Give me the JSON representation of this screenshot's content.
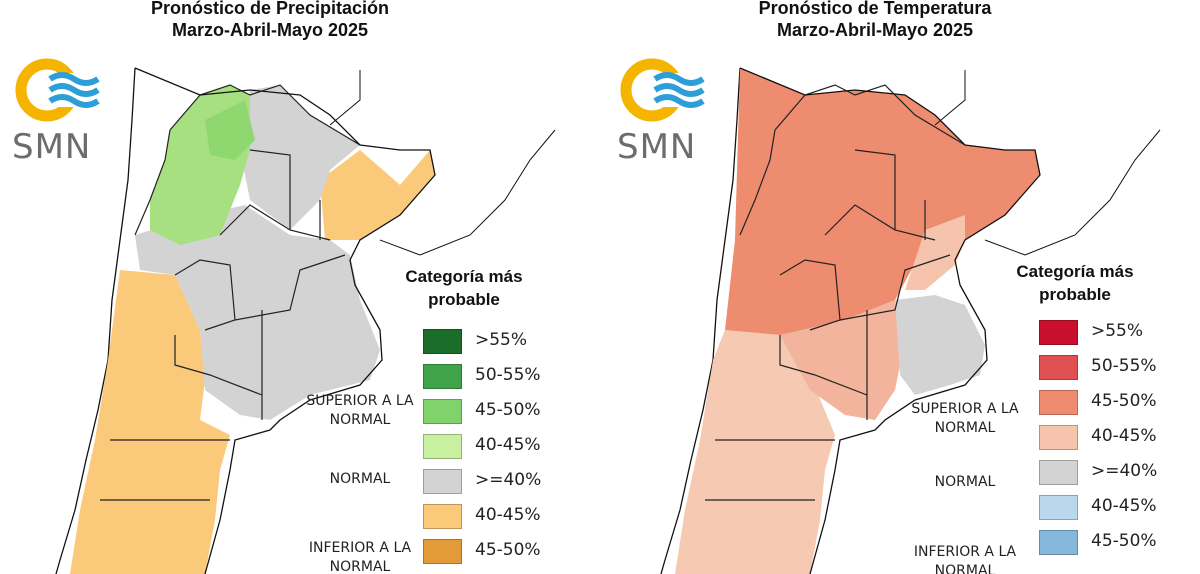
{
  "panels": [
    {
      "id": "precip",
      "title_line1": "Pronóstico de Precipitación",
      "title_line2": "Marzo-Abril-Mayo 2025",
      "logo_text": "SMN",
      "legend": {
        "title": "Categoría más probable",
        "groups": {
          "superior": "SUPERIOR A LA NORMAL",
          "normal": "NORMAL",
          "inferior": "INFERIOR A LA NORMAL"
        },
        "items": [
          {
            "label": ">55%",
            "color": "#1a6e2a"
          },
          {
            "label": "50-55%",
            "color": "#3fa34a"
          },
          {
            "label": "45-50%",
            "color": "#7fd36a"
          },
          {
            "label": "40-45%",
            "color": "#c7f0a0"
          },
          {
            "label": ">=40%",
            "color": "#d3d3d3"
          },
          {
            "label": "40-45%",
            "color": "#fbc97a"
          },
          {
            "label": "45-50%",
            "color": "#e39a38"
          }
        ]
      },
      "region_colors": {
        "north": "#a7e080",
        "northcore": "#8fd86f",
        "center": "#d3d3d3",
        "east": "#fbc97a",
        "south": "#fbc97a"
      }
    },
    {
      "id": "temp",
      "title_line1": "Pronóstico de Temperatura",
      "title_line2": "Marzo-Abril-Mayo 2025",
      "logo_text": "SMN",
      "legend": {
        "title": "Categoría más probable",
        "groups": {
          "superior": "SUPERIOR A LA NORMAL",
          "normal": "NORMAL",
          "inferior": "INFERIOR A LA NORMAL"
        },
        "items": [
          {
            "label": ">55%",
            "color": "#c8102e"
          },
          {
            "label": "50-55%",
            "color": "#e05050"
          },
          {
            "label": "45-50%",
            "color": "#ef8c70"
          },
          {
            "label": "40-45%",
            "color": "#f6c4ac"
          },
          {
            "label": ">=40%",
            "color": "#d3d3d3"
          },
          {
            "label": "40-45%",
            "color": "#b9d8ec"
          },
          {
            "label": "45-50%",
            "color": "#86b8dc"
          }
        ]
      },
      "region_colors": {
        "north": "#ee8c6f",
        "northcore": "#ee8c6f",
        "center": "#f2a488",
        "east": "#f6c4ac",
        "south": "#f6c9b2",
        "buenos_aires": "#d3d3d3"
      }
    }
  ]
}
